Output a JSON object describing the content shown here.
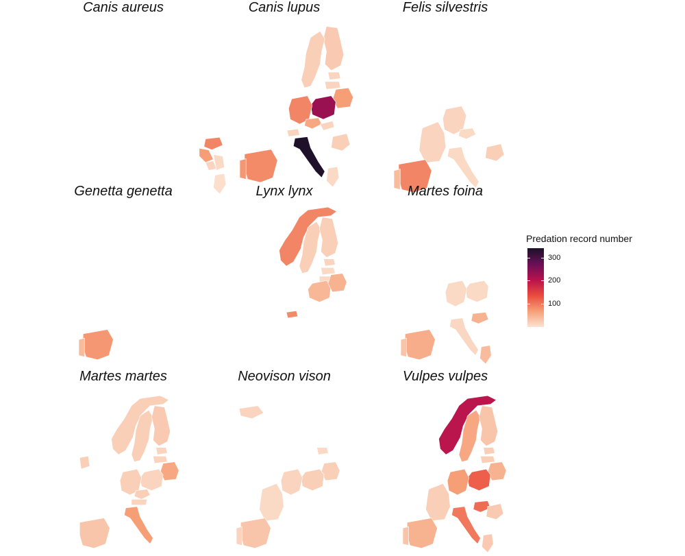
{
  "panels": [
    {
      "title": "Canis aureus",
      "countries": [
        {
          "name": "Hungary",
          "value": 90
        },
        {
          "name": "Croatia",
          "value": 70
        },
        {
          "name": "Bosnia",
          "value": 15
        },
        {
          "name": "Serbia",
          "value": 10
        },
        {
          "name": "Greece",
          "value": 5
        }
      ]
    },
    {
      "title": "Canis lupus",
      "countries": [
        {
          "name": "Finland",
          "value": 25
        },
        {
          "name": "Sweden",
          "value": 20
        },
        {
          "name": "Estonia",
          "value": 15
        },
        {
          "name": "Latvia",
          "value": 15
        },
        {
          "name": "Belarus",
          "value": 70
        },
        {
          "name": "Poland",
          "value": 230
        },
        {
          "name": "Germany",
          "value": 90
        },
        {
          "name": "Czechia",
          "value": 60
        },
        {
          "name": "Slovakia",
          "value": 15
        },
        {
          "name": "Romania",
          "value": 20
        },
        {
          "name": "Switzerland",
          "value": 15
        },
        {
          "name": "Italy",
          "value": 335
        },
        {
          "name": "Spain",
          "value": 85
        },
        {
          "name": "Portugal",
          "value": 75
        },
        {
          "name": "Greece",
          "value": 10
        }
      ]
    },
    {
      "title": "Felis silvestris",
      "countries": [
        {
          "name": "Germany",
          "value": 15
        },
        {
          "name": "France",
          "value": 15
        },
        {
          "name": "Czechia",
          "value": 10
        },
        {
          "name": "Romania",
          "value": 20
        },
        {
          "name": "Italy",
          "value": 10
        },
        {
          "name": "Spain",
          "value": 90
        },
        {
          "name": "Portugal",
          "value": 40
        }
      ]
    },
    {
      "title": "Genetta genetta",
      "countries": [
        {
          "name": "Spain",
          "value": 75
        },
        {
          "name": "Portugal",
          "value": 40
        }
      ]
    },
    {
      "title": "Lynx lynx",
      "countries": [
        {
          "name": "Norway",
          "value": 90
        },
        {
          "name": "Sweden",
          "value": 20
        },
        {
          "name": "Finland",
          "value": 20
        },
        {
          "name": "Estonia",
          "value": 15
        },
        {
          "name": "Latvia",
          "value": 10
        },
        {
          "name": "Lithuania",
          "value": 10
        },
        {
          "name": "Poland",
          "value": 45
        },
        {
          "name": "Belarus",
          "value": 50
        },
        {
          "name": "Switzerland",
          "value": 85
        }
      ]
    },
    {
      "title": "Martes foina",
      "countries": [
        {
          "name": "Poland",
          "value": 10
        },
        {
          "name": "Germany",
          "value": 10
        },
        {
          "name": "Hungary",
          "value": 50
        },
        {
          "name": "Italy",
          "value": 12
        },
        {
          "name": "Spain",
          "value": 55
        },
        {
          "name": "Portugal",
          "value": 30
        },
        {
          "name": "Greece",
          "value": 40
        }
      ]
    },
    {
      "title": "Martes martes",
      "countries": [
        {
          "name": "Norway",
          "value": 20
        },
        {
          "name": "Sweden",
          "value": 20
        },
        {
          "name": "Finland",
          "value": 25
        },
        {
          "name": "Estonia",
          "value": 15
        },
        {
          "name": "Latvia",
          "value": 15
        },
        {
          "name": "Belarus",
          "value": 60
        },
        {
          "name": "Poland",
          "value": 15
        },
        {
          "name": "Germany",
          "value": 20
        },
        {
          "name": "Czechia",
          "value": 20
        },
        {
          "name": "Austria",
          "value": 15
        },
        {
          "name": "Italy",
          "value": 70
        },
        {
          "name": "Spain",
          "value": 30
        },
        {
          "name": "Ireland",
          "value": 20
        }
      ]
    },
    {
      "title": "Neovison vison",
      "countries": [
        {
          "name": "Iceland",
          "value": 15
        },
        {
          "name": "Estonia",
          "value": 10
        },
        {
          "name": "Belarus",
          "value": 20
        },
        {
          "name": "Poland",
          "value": 20
        },
        {
          "name": "Germany",
          "value": 15
        },
        {
          "name": "France",
          "value": 10
        },
        {
          "name": "Spain",
          "value": 30
        },
        {
          "name": "Portugal",
          "value": 15
        }
      ]
    },
    {
      "title": "Vulpes vulpes",
      "countries": [
        {
          "name": "Norway",
          "value": 200
        },
        {
          "name": "Sweden",
          "value": 60
        },
        {
          "name": "Finland",
          "value": 30
        },
        {
          "name": "Estonia",
          "value": 20
        },
        {
          "name": "Latvia",
          "value": 20
        },
        {
          "name": "Belarus",
          "value": 50
        },
        {
          "name": "Poland",
          "value": 120
        },
        {
          "name": "Germany",
          "value": 70
        },
        {
          "name": "France",
          "value": 20
        },
        {
          "name": "Hungary",
          "value": 110
        },
        {
          "name": "Romania",
          "value": 25
        },
        {
          "name": "Italy",
          "value": 100
        },
        {
          "name": "Spain",
          "value": 50
        },
        {
          "name": "Portugal",
          "value": 30
        },
        {
          "name": "Greece",
          "value": 25
        }
      ]
    }
  ],
  "legend": {
    "title": "Predation record number",
    "ticks": [
      100,
      200,
      300
    ],
    "min": 0,
    "max": 340,
    "colors": [
      "#fbe3d2",
      "#f6a078",
      "#ea4b3d",
      "#b7124d",
      "#690f57",
      "#1a1127"
    ]
  }
}
